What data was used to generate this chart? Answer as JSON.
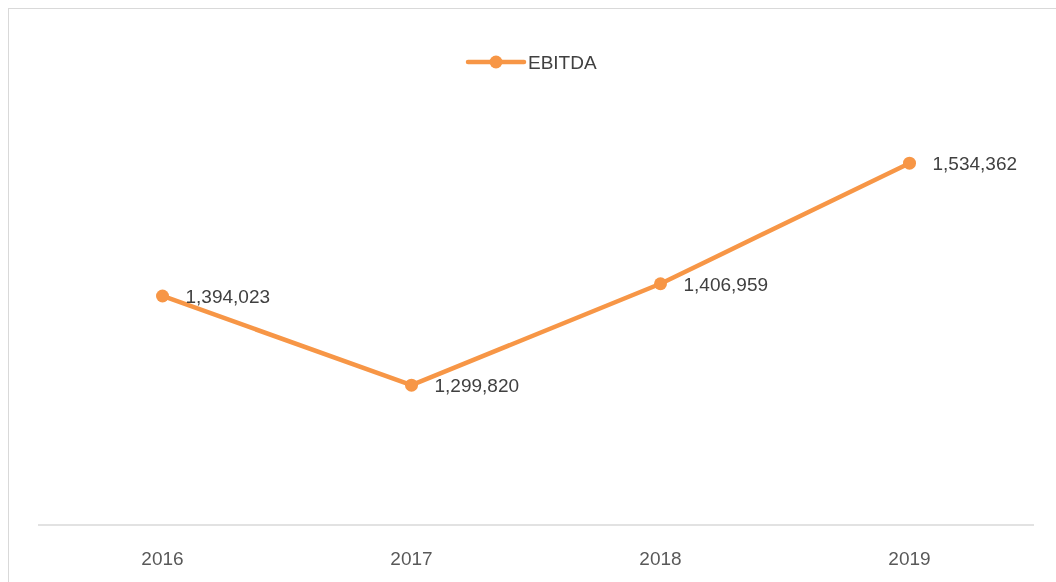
{
  "chart_data": {
    "type": "line",
    "categories": [
      "2016",
      "2017",
      "2018",
      "2019"
    ],
    "series": [
      {
        "name": "EBITDA",
        "color": "#f79646",
        "values": [
          1394023,
          1299820,
          1406959,
          1534362
        ],
        "value_labels": [
          "1,394,023",
          "1,299,820",
          "1,406,959",
          "1,534,362"
        ]
      }
    ],
    "tick_labels": "x",
    "legend": "top",
    "marker": "circle",
    "line_style": "solid"
  }
}
